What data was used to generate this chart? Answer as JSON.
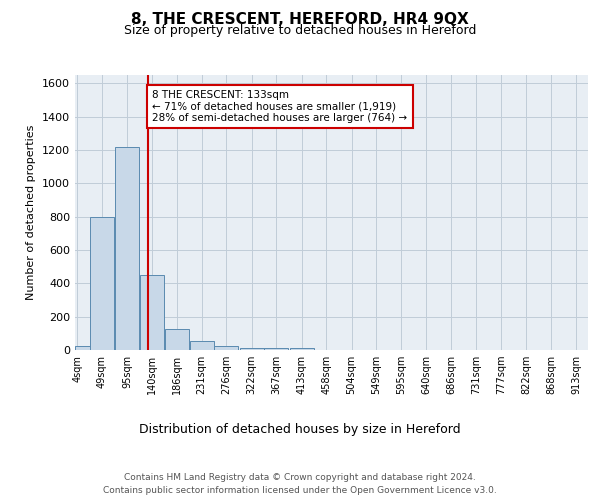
{
  "title": "8, THE CRESCENT, HEREFORD, HR4 9QX",
  "subtitle": "Size of property relative to detached houses in Hereford",
  "xlabel": "Distribution of detached houses by size in Hereford",
  "ylabel": "Number of detached properties",
  "bar_color": "#c8d8e8",
  "bar_edge_color": "#5a8ab0",
  "bar_centers": [
    22,
    49,
    95,
    140,
    186,
    231,
    276,
    322,
    367,
    413,
    458,
    504,
    549,
    595,
    640,
    686,
    731,
    777,
    822,
    868,
    913
  ],
  "bar_heights": [
    25,
    800,
    1220,
    450,
    125,
    55,
    25,
    15,
    10,
    10,
    0,
    0,
    0,
    0,
    0,
    0,
    0,
    0,
    0,
    0,
    0
  ],
  "bin_width": 45,
  "tick_labels": [
    "4sqm",
    "49sqm",
    "95sqm",
    "140sqm",
    "186sqm",
    "231sqm",
    "276sqm",
    "322sqm",
    "367sqm",
    "413sqm",
    "458sqm",
    "504sqm",
    "549sqm",
    "595sqm",
    "640sqm",
    "686sqm",
    "731sqm",
    "777sqm",
    "822sqm",
    "868sqm",
    "913sqm"
  ],
  "tick_positions": [
    4,
    49,
    95,
    140,
    186,
    231,
    276,
    322,
    367,
    413,
    458,
    504,
    549,
    595,
    640,
    686,
    731,
    777,
    822,
    868,
    913
  ],
  "ylim": [
    0,
    1650
  ],
  "xlim": [
    0,
    935
  ],
  "vline_x": 133,
  "vline_color": "#cc0000",
  "annotation_text": "8 THE CRESCENT: 133sqm\n← 71% of detached houses are smaller (1,919)\n28% of semi-detached houses are larger (764) →",
  "annotation_box_color": "#ffffff",
  "annotation_box_edge": "#cc0000",
  "yticks": [
    0,
    200,
    400,
    600,
    800,
    1000,
    1200,
    1400,
    1600
  ],
  "grid_color": "#c0ccd8",
  "background_color": "#e8eef4",
  "footer_text": "Contains HM Land Registry data © Crown copyright and database right 2024.\nContains public sector information licensed under the Open Government Licence v3.0."
}
